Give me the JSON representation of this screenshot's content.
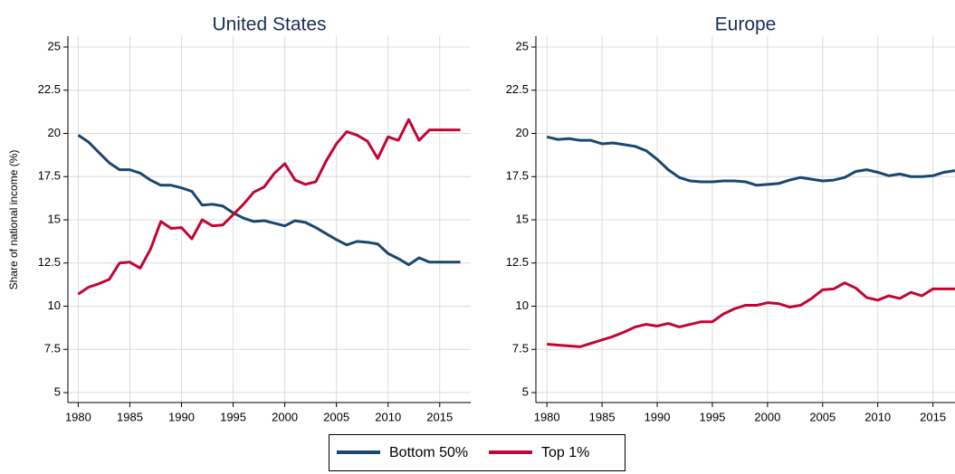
{
  "chart_data": [
    {
      "type": "line",
      "title": "United States",
      "y_label": "Share of national income (%)",
      "x": [
        1980,
        1981,
        1982,
        1983,
        1984,
        1985,
        1986,
        1987,
        1988,
        1989,
        1990,
        1991,
        1992,
        1993,
        1994,
        1995,
        1996,
        1997,
        1998,
        1999,
        2000,
        2001,
        2002,
        2003,
        2004,
        2005,
        2006,
        2007,
        2008,
        2009,
        2010,
        2011,
        2012,
        2013,
        2014,
        2015,
        2016,
        2017
      ],
      "series": [
        {
          "name": "Bottom 50%",
          "color": "#1a476f",
          "values": [
            19.9,
            19.5,
            18.9,
            18.3,
            17.9,
            17.9,
            17.7,
            17.3,
            17.0,
            17.0,
            16.85,
            16.65,
            15.85,
            15.9,
            15.8,
            15.4,
            15.1,
            14.9,
            14.95,
            14.8,
            14.65,
            14.95,
            14.85,
            14.55,
            14.2,
            13.85,
            13.55,
            13.75,
            13.7,
            13.6,
            13.05,
            12.75,
            12.4,
            12.8,
            12.55,
            12.55,
            12.55,
            12.55
          ]
        },
        {
          "name": "Top 1%",
          "color": "#c10534",
          "values": [
            10.7,
            11.1,
            11.3,
            11.55,
            12.5,
            12.55,
            12.2,
            13.3,
            14.9,
            14.5,
            14.55,
            13.9,
            15.0,
            14.65,
            14.7,
            15.3,
            15.9,
            16.6,
            16.9,
            17.7,
            18.25,
            17.3,
            17.05,
            17.2,
            18.4,
            19.4,
            20.1,
            19.9,
            19.55,
            18.55,
            19.8,
            19.6,
            20.8,
            19.6,
            20.2,
            20.2,
            20.2,
            20.2
          ]
        }
      ],
      "xlim": [
        1979,
        2018
      ],
      "xticks": [
        1980,
        1985,
        1990,
        1995,
        2000,
        2005,
        2010,
        2015
      ],
      "ylim": [
        5,
        25
      ],
      "yticks": [
        5,
        7.5,
        10,
        12.5,
        15,
        17.5,
        20,
        22.5,
        25
      ],
      "grid": true
    },
    {
      "type": "line",
      "title": "Europe",
      "x": [
        1980,
        1981,
        1982,
        1983,
        1984,
        1985,
        1986,
        1987,
        1988,
        1989,
        1990,
        1991,
        1992,
        1993,
        1994,
        1995,
        1996,
        1997,
        1998,
        1999,
        2000,
        2001,
        2002,
        2003,
        2004,
        2005,
        2006,
        2007,
        2008,
        2009,
        2010,
        2011,
        2012,
        2013,
        2014,
        2015,
        2016,
        2017
      ],
      "series": [
        {
          "name": "Bottom 50%",
          "color": "#1a476f",
          "values": [
            19.8,
            19.65,
            19.7,
            19.6,
            19.6,
            19.4,
            19.45,
            19.35,
            19.25,
            19.0,
            18.5,
            17.9,
            17.45,
            17.25,
            17.2,
            17.2,
            17.25,
            17.25,
            17.2,
            17.0,
            17.05,
            17.1,
            17.3,
            17.45,
            17.35,
            17.25,
            17.3,
            17.45,
            17.8,
            17.9,
            17.75,
            17.55,
            17.65,
            17.5,
            17.5,
            17.55,
            17.75,
            17.85
          ]
        },
        {
          "name": "Top 1%",
          "color": "#c10534",
          "values": [
            7.8,
            7.75,
            7.7,
            7.65,
            7.85,
            8.05,
            8.25,
            8.5,
            8.8,
            8.95,
            8.85,
            9.0,
            8.8,
            8.95,
            9.1,
            9.1,
            9.55,
            9.85,
            10.05,
            10.05,
            10.2,
            10.15,
            9.95,
            10.05,
            10.45,
            10.95,
            11.0,
            11.35,
            11.05,
            10.5,
            10.35,
            10.6,
            10.45,
            10.8,
            10.6,
            11.0,
            11.0,
            11.0
          ]
        }
      ],
      "xlim": [
        1979,
        2017
      ],
      "xticks": [
        1980,
        1985,
        1990,
        1995,
        2000,
        2005,
        2010,
        2015
      ],
      "ylim": [
        5,
        25
      ],
      "yticks": [
        5,
        7.5,
        10,
        12.5,
        15,
        17.5,
        20,
        22.5,
        25
      ],
      "grid": true
    }
  ]
}
